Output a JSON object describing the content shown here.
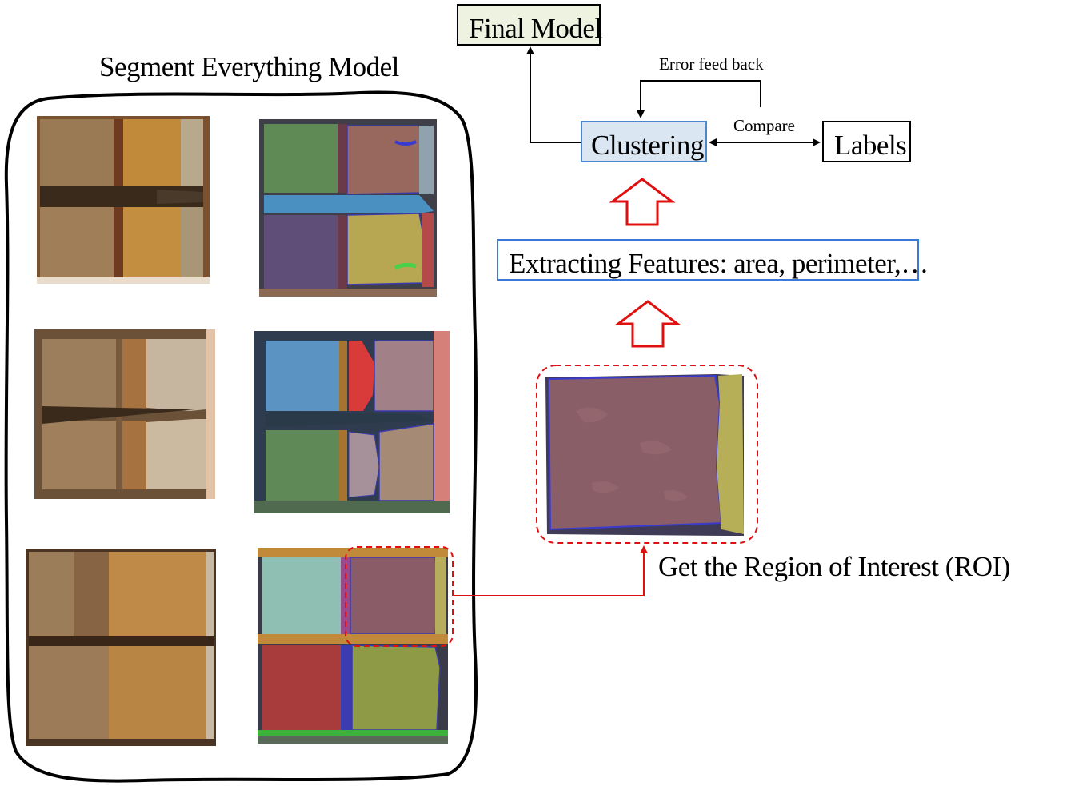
{
  "sam": {
    "title": "Segment Everything Model"
  },
  "pipeline": {
    "final_model": "Final Model",
    "error_feedback": "Error feed back",
    "compare": "Compare",
    "clustering": "Clustering",
    "labels": "Labels",
    "features": "Extracting Features: area, perimeter,…",
    "roi": "Get the Region of Interest (ROI)"
  },
  "colors": {
    "final_model_fill": "#eef2e0",
    "clustering_fill": "#dbe6f3",
    "clustering_border": "#4a86d0",
    "features_border": "#3c78d8",
    "accent_red": "#e01010"
  }
}
